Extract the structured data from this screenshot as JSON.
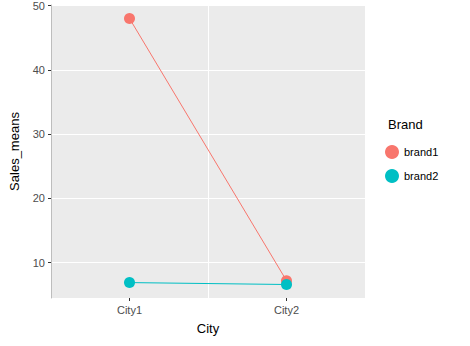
{
  "chart_data": {
    "type": "line",
    "x_label": "City",
    "y_label": "Sales_means",
    "categories": [
      "City1",
      "City2"
    ],
    "series": [
      {
        "name": "brand1",
        "color": "#F8766D",
        "values": [
          48.0,
          7.2
        ]
      },
      {
        "name": "brand2",
        "color": "#00BFC4",
        "values": [
          6.9,
          6.6
        ]
      }
    ],
    "ylim": [
      4.5,
      50.1
    ],
    "yticks": [
      10,
      20,
      30,
      40,
      50
    ],
    "grid": true,
    "legend": "right",
    "legend_title": "Brand",
    "marker": "circle"
  }
}
